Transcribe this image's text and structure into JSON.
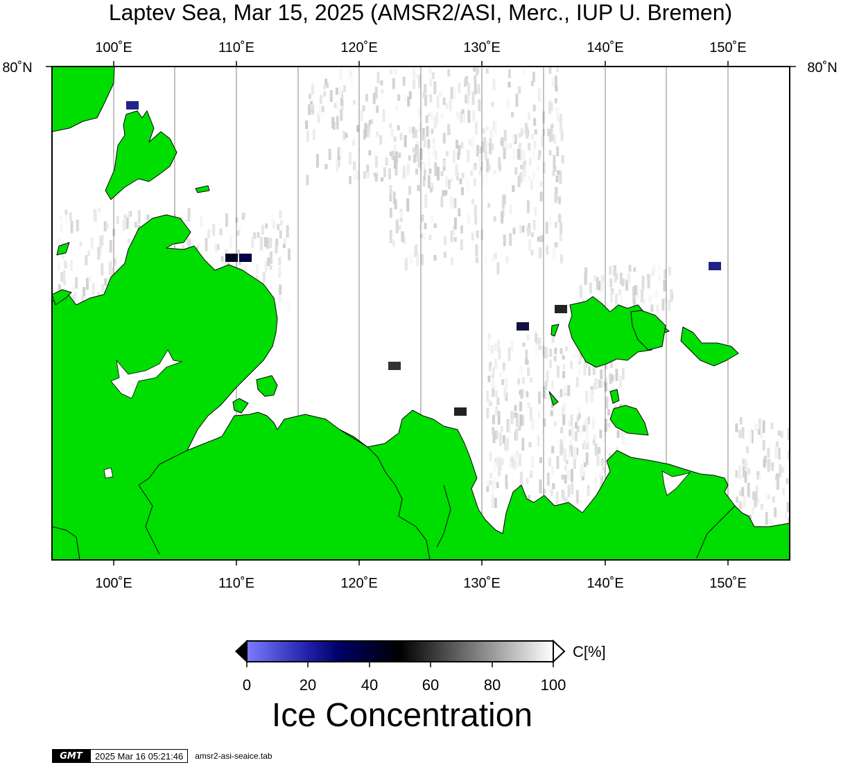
{
  "title": "Laptev Sea, Mar 15, 2025 (AMSR2/ASI, Merc., IUP U. Bremen)",
  "map": {
    "lon_labels": [
      "100˚E",
      "110˚E",
      "120˚E",
      "130˚E",
      "140˚E",
      "150˚E"
    ],
    "lat_label_left": "80˚N",
    "lat_label_right": "80˚N",
    "land_color": "#00dd00"
  },
  "colorbar": {
    "ticks": [
      "0",
      "20",
      "40",
      "60",
      "80",
      "100"
    ],
    "unit": "C[%]",
    "title": "Ice Concentration",
    "colors": [
      "#7b7bff",
      "#000066",
      "#000000",
      "#ffffff"
    ]
  },
  "footer": {
    "logo": "GMT",
    "timestamp": "2025 Mar 16 05:21:46",
    "source": "amsr2-asi-seaice.tab"
  }
}
